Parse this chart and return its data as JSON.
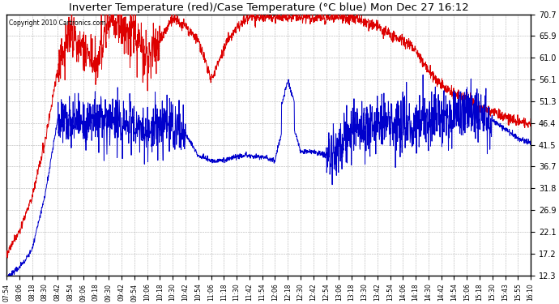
{
  "title": "Inverter Temperature (red)/Case Temperature (°C blue) Mon Dec 27 16:12",
  "copyright": "Copyright 2010 Cartronics.com",
  "background_color": "#ffffff",
  "plot_background": "#ffffff",
  "grid_color": "#b0b0b0",
  "red_color": "#dd0000",
  "blue_color": "#0000cc",
  "yticks": [
    12.3,
    17.2,
    22.1,
    26.9,
    31.8,
    36.7,
    41.5,
    46.4,
    51.3,
    56.1,
    61.0,
    65.9,
    70.7
  ],
  "ymin": 12.3,
  "ymax": 70.7,
  "xtick_labels": [
    "07:54",
    "08:06",
    "08:18",
    "08:30",
    "08:42",
    "08:54",
    "09:06",
    "09:18",
    "09:30",
    "09:42",
    "09:54",
    "10:06",
    "10:18",
    "10:30",
    "10:42",
    "10:54",
    "11:06",
    "11:18",
    "11:30",
    "11:42",
    "11:54",
    "12:06",
    "12:18",
    "12:30",
    "12:42",
    "12:54",
    "13:06",
    "13:18",
    "13:30",
    "13:42",
    "13:54",
    "14:06",
    "14:18",
    "14:30",
    "14:42",
    "14:54",
    "15:06",
    "15:18",
    "15:30",
    "15:43",
    "15:55",
    "16:10"
  ]
}
